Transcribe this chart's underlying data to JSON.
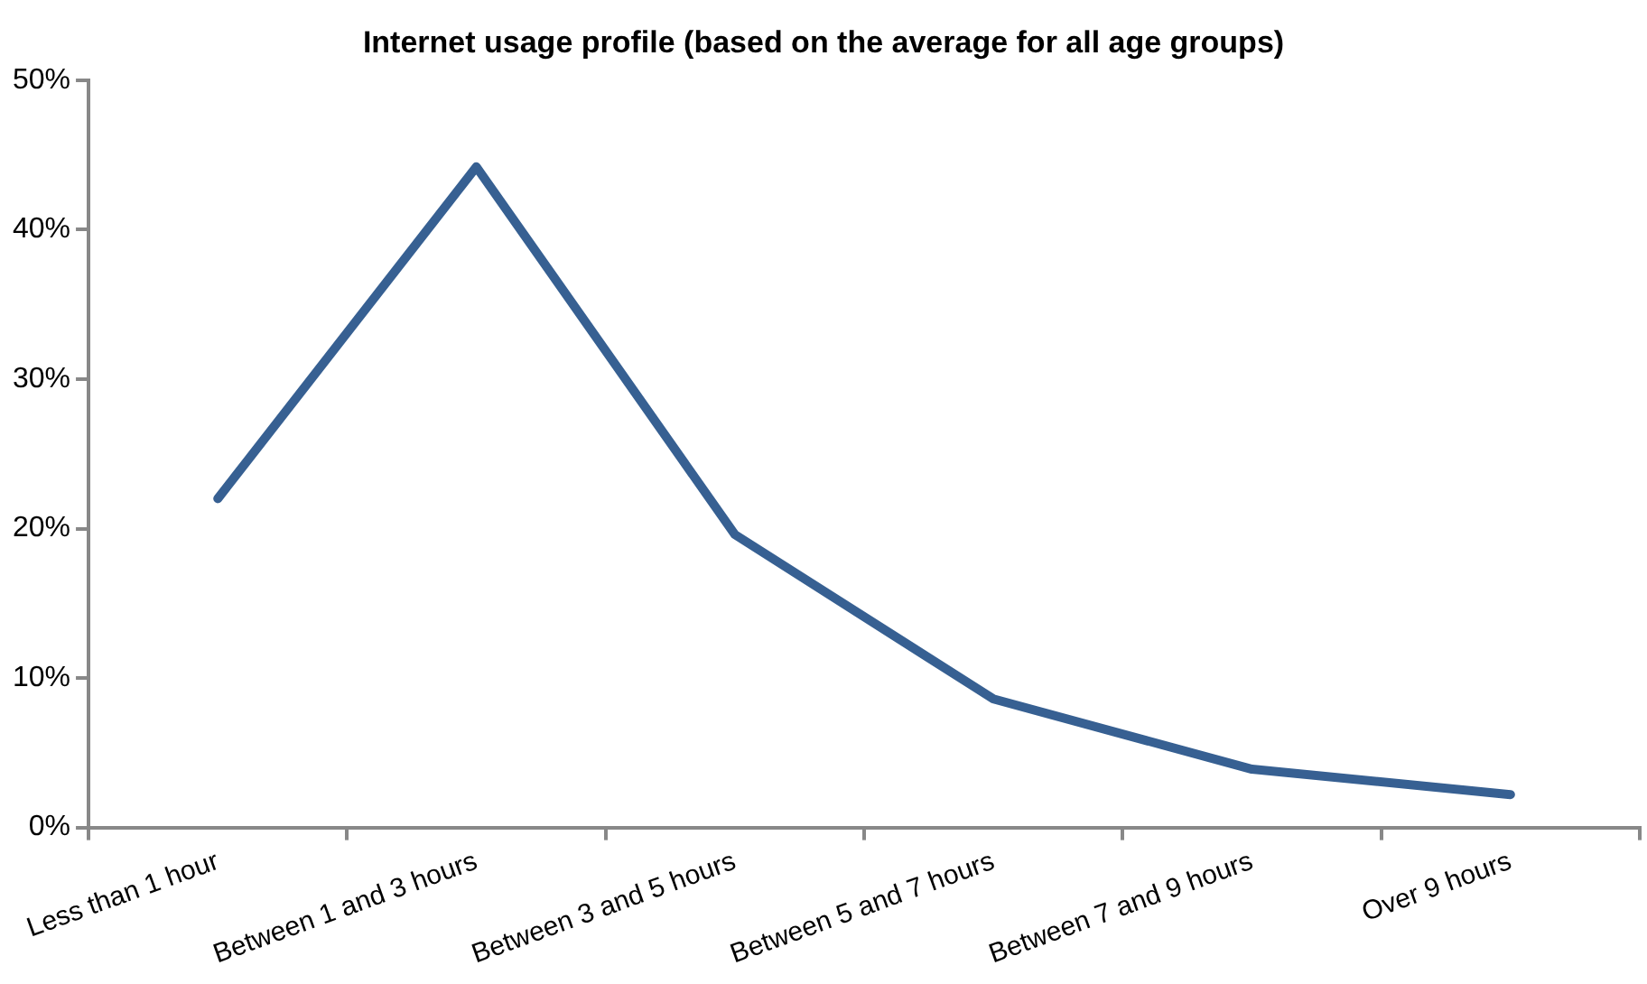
{
  "chart_data": {
    "type": "line",
    "title": "Internet usage profile (based on the average for all age groups)",
    "categories": [
      "Less than 1 hour",
      "Between 1 and 3 hours",
      "Between 3 and 5 hours",
      "Between 5 and 7 hours",
      "Between 7 and 9 hours",
      "Over 9 hours"
    ],
    "series": [
      {
        "color": "#376092",
        "values": [
          22,
          44.2,
          19.6,
          8.6,
          3.9,
          2.2
        ]
      }
    ],
    "ylim": [
      0,
      50
    ],
    "yticks": [
      {
        "value": 0,
        "label": "0%"
      },
      {
        "value": 10,
        "label": "10%"
      },
      {
        "value": 20,
        "label": "20%"
      },
      {
        "value": 30,
        "label": "30%"
      },
      {
        "value": 40,
        "label": "40%"
      },
      {
        "value": 50,
        "label": "50%"
      }
    ],
    "grid": false,
    "legend": false,
    "marker": "none",
    "line_style": "solid"
  }
}
